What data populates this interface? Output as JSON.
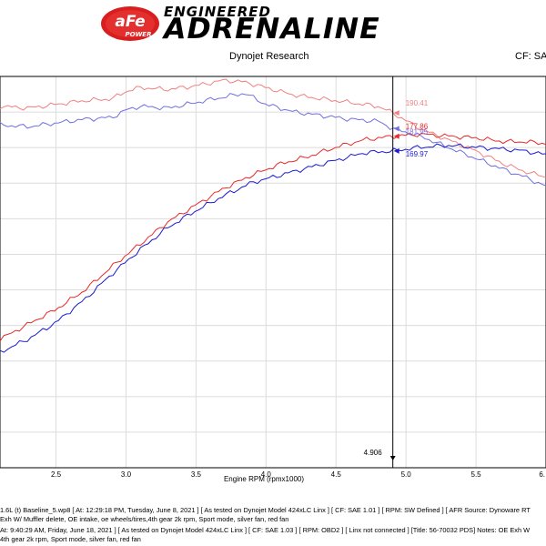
{
  "header": {
    "logo_text": "aFe",
    "logo_sub": "POWER",
    "brand_top": "ENGINEERED",
    "brand_main": "ADRENALINE",
    "subtitle": "Dynojet Research",
    "cf_label": "CF: SA"
  },
  "colors": {
    "red": "#e82a2a",
    "red_light": "#f08080",
    "blue": "#1a1ad0",
    "blue_light": "#7070e0",
    "cursor": "#000000",
    "grid": "#dcdcdc"
  },
  "chart_data": {
    "type": "line",
    "xlabel": "Engine RPM (rpmx1000)",
    "xlim": [
      2.1,
      6.0
    ],
    "x_ticks": [
      "2.5",
      "3.0",
      "3.5",
      "4.0",
      "4.5",
      "5.0",
      "5.5",
      "6."
    ],
    "x_tick_values": [
      2.5,
      3.0,
      3.5,
      4.0,
      4.5,
      5.0,
      5.5,
      6.0
    ],
    "ylim": [
      0,
      210
    ],
    "grid": true,
    "cursor": {
      "x": 4.906,
      "label": "4.906"
    },
    "data_labels": [
      {
        "text": "190.41",
        "series": "power-aftermarket"
      },
      {
        "text": "181.95",
        "series": "power-baseline"
      },
      {
        "text": "177.86",
        "series": "torque-aftermarket"
      },
      {
        "text": "169.97",
        "series": "torque-baseline"
      }
    ],
    "series": [
      {
        "id": "power-aftermarket",
        "color": "#f08080",
        "x": [
          2.1,
          2.3,
          2.5,
          2.7,
          2.9,
          3.0,
          3.1,
          3.3,
          3.5,
          3.7,
          3.85,
          4.0,
          4.2,
          4.4,
          4.6,
          4.8,
          4.906,
          5.1,
          5.3,
          5.5,
          5.7,
          5.85,
          6.0
        ],
        "y": [
          194,
          193,
          195,
          197,
          198,
          202,
          204,
          203,
          205,
          208,
          207,
          204,
          200,
          198,
          196,
          194,
          190.4,
          182,
          176,
          170,
          163,
          159,
          156
        ]
      },
      {
        "id": "power-baseline",
        "color": "#7070e0",
        "x": [
          2.1,
          2.3,
          2.5,
          2.7,
          2.9,
          3.0,
          3.1,
          3.3,
          3.5,
          3.7,
          3.85,
          4.0,
          4.2,
          4.4,
          4.6,
          4.8,
          4.906,
          5.1,
          5.3,
          5.5,
          5.7,
          5.85,
          6.0
        ],
        "y": [
          184,
          183,
          185,
          187,
          188,
          192,
          194,
          193,
          196,
          199,
          201,
          195,
          191,
          189,
          187,
          186,
          182,
          178,
          172,
          166,
          160,
          156,
          151
        ]
      },
      {
        "id": "torque-aftermarket",
        "color": "#e82a2a",
        "x": [
          2.1,
          2.3,
          2.5,
          2.7,
          2.9,
          3.1,
          3.3,
          3.5,
          3.7,
          3.9,
          4.1,
          4.3,
          4.5,
          4.7,
          4.906,
          5.1,
          5.3,
          5.5,
          5.7,
          5.85,
          6.0
        ],
        "y": [
          69,
          77,
          85,
          95,
          108,
          120,
          132,
          141,
          150,
          157,
          163,
          167,
          172,
          176,
          177.9,
          179,
          178,
          177,
          175,
          175,
          174
        ]
      },
      {
        "id": "torque-baseline",
        "color": "#1a1ad0",
        "x": [
          2.1,
          2.3,
          2.5,
          2.7,
          2.9,
          3.1,
          3.3,
          3.5,
          3.7,
          3.9,
          4.1,
          4.3,
          4.5,
          4.7,
          4.906,
          5.1,
          5.3,
          5.5,
          5.7,
          5.85,
          6.0
        ],
        "y": [
          62,
          69,
          78,
          90,
          104,
          117,
          129,
          138,
          146,
          153,
          157,
          161,
          165,
          169,
          170,
          172,
          173,
          172,
          171,
          170,
          168
        ]
      }
    ]
  },
  "footer": {
    "line1": "1.6L (t) Baseline_5.wp8 [ At: 12:29:18 PM, Tuesday, June 8, 2021 ] [ As tested on Dynojet Model 424xLC Linx ] [ CF: SAE 1.01 ] [ RPM: SW Defined ] [ AFR Source: Dynoware RT",
    "line2": "Exh W/ Muffler delete, OE intake, oe wheels/tires,4th gear 2k rpm, Sport mode, silver fan, red fan",
    "line3": "At: 9:40:29 AM, Friday, June 18, 2021 ] [ As tested on Dynojet Model 424xLC Linx ] [ CF: SAE 1.03 ] [ RPM: OBD2 ] [ Linx not connected ] [Title: 56-70032 PDS] Notes: OE Exh W",
    "line4": "4th gear 2k rpm, Sport mode, silver fan, red fan"
  }
}
